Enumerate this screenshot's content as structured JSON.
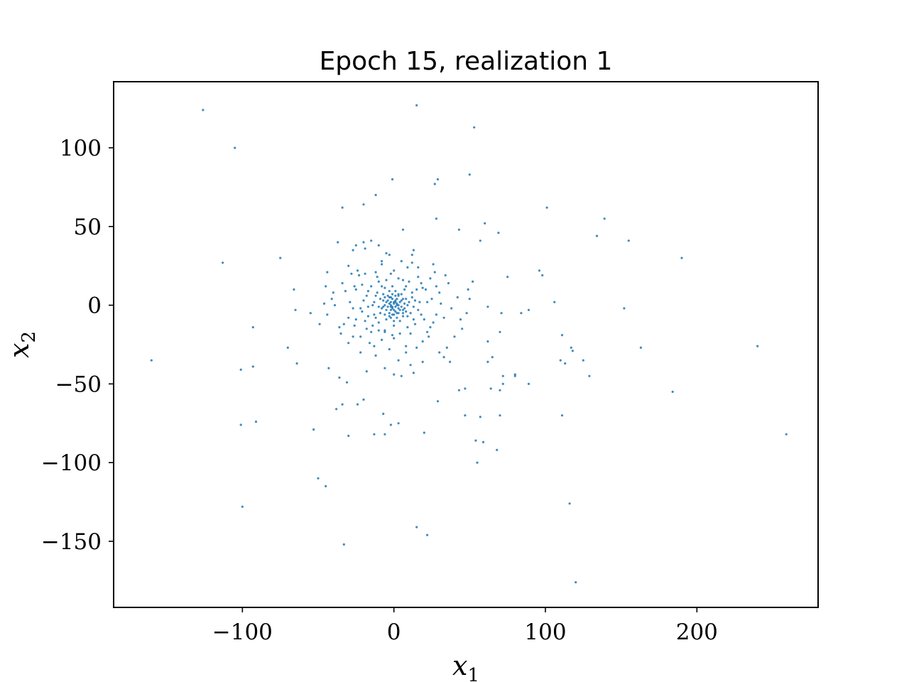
{
  "chart_data": {
    "type": "scatter",
    "title": "Epoch 15, realization 1",
    "xlabel": "x",
    "xlabel_sub": "1",
    "ylabel": "x",
    "ylabel_sub": "2",
    "xlim": [
      -185,
      280
    ],
    "ylim": [
      -192,
      142
    ],
    "xticks": [
      -100,
      0,
      100,
      200
    ],
    "xtick_labels": [
      "−100",
      "0",
      "100",
      "200"
    ],
    "yticks": [
      -150,
      -100,
      -50,
      0,
      50,
      100
    ],
    "ytick_labels": [
      "−150",
      "−100",
      "−50",
      "0",
      "50",
      "100"
    ],
    "grid": false,
    "marker_color": "#1f77b4",
    "points": [
      [
        -126,
        124
      ],
      [
        -105,
        100
      ],
      [
        15,
        127
      ],
      [
        53,
        113
      ],
      [
        -1,
        80
      ],
      [
        29,
        80
      ],
      [
        27,
        77
      ],
      [
        50,
        83
      ],
      [
        -20,
        64
      ],
      [
        -34,
        62
      ],
      [
        -12,
        70
      ],
      [
        101,
        62
      ],
      [
        139,
        55
      ],
      [
        155,
        41
      ],
      [
        134,
        44
      ],
      [
        190,
        30
      ],
      [
        -113,
        27
      ],
      [
        -75,
        30
      ],
      [
        28,
        55
      ],
      [
        43,
        48
      ],
      [
        60,
        52
      ],
      [
        69,
        46
      ],
      [
        57,
        41
      ],
      [
        6,
        48
      ],
      [
        -160,
        -35
      ],
      [
        -101,
        -41
      ],
      [
        -93,
        -39
      ],
      [
        -64,
        -37
      ],
      [
        -70,
        -27
      ],
      [
        -93,
        -14
      ],
      [
        -66,
        10
      ],
      [
        -65,
        -3
      ],
      [
        -44,
        21
      ],
      [
        -45,
        12
      ],
      [
        -43,
        -40
      ],
      [
        -34,
        -63
      ],
      [
        -38,
        -66
      ],
      [
        -53,
        -79
      ],
      [
        -101,
        -76
      ],
      [
        -91,
        -74
      ],
      [
        -30,
        -83
      ],
      [
        -13,
        -82
      ],
      [
        -7,
        -69
      ],
      [
        -6,
        -82
      ],
      [
        -2,
        -76
      ],
      [
        3,
        -75
      ],
      [
        20,
        -81
      ],
      [
        -50,
        -110
      ],
      [
        -45,
        -115
      ],
      [
        -100,
        -128
      ],
      [
        -33,
        -152
      ],
      [
        15,
        -141
      ],
      [
        22,
        -146
      ],
      [
        116,
        -126
      ],
      [
        120,
        -176
      ],
      [
        259,
        -82
      ],
      [
        240,
        -26
      ],
      [
        184,
        -55
      ],
      [
        163,
        -27
      ],
      [
        152,
        -2
      ],
      [
        111,
        -19
      ],
      [
        117,
        -27
      ],
      [
        118,
        -29
      ],
      [
        110,
        -35
      ],
      [
        113,
        -37
      ],
      [
        125,
        -35
      ],
      [
        129,
        -45
      ],
      [
        111,
        -70
      ],
      [
        89,
        -50
      ],
      [
        80,
        -44
      ],
      [
        80,
        -45
      ],
      [
        72,
        -45
      ],
      [
        72,
        -50
      ],
      [
        70,
        -54
      ],
      [
        64,
        -53
      ],
      [
        70,
        -70
      ],
      [
        57,
        -71
      ],
      [
        54,
        -86
      ],
      [
        59,
        -87
      ],
      [
        68,
        -92
      ],
      [
        55,
        -100
      ],
      [
        47,
        -70
      ],
      [
        47,
        -53
      ],
      [
        43,
        -54
      ],
      [
        37,
        -36
      ],
      [
        29,
        -61
      ],
      [
        13,
        -43
      ],
      [
        62,
        -23
      ],
      [
        65,
        -33
      ],
      [
        62,
        -36
      ],
      [
        70,
        -17
      ],
      [
        96,
        22
      ],
      [
        98,
        19
      ],
      [
        106,
        2
      ],
      [
        89,
        -3
      ],
      [
        84,
        -5
      ],
      [
        62,
        -1
      ],
      [
        71,
        -5
      ],
      [
        75,
        18
      ],
      [
        50,
        4
      ],
      [
        49,
        10
      ],
      [
        42,
        5
      ],
      [
        34,
        19
      ],
      [
        13,
        35
      ],
      [
        26,
        26
      ],
      [
        -25,
        38
      ],
      [
        -20,
        40
      ],
      [
        -15,
        41
      ],
      [
        -10,
        38
      ],
      [
        -5,
        33
      ],
      [
        -27,
        35
      ],
      [
        -37,
        40
      ],
      [
        -28,
        20
      ],
      [
        -29,
        2
      ],
      [
        -39,
        0
      ],
      [
        -41,
        4
      ],
      [
        -22,
        -20
      ],
      [
        -18,
        -15
      ],
      [
        -25,
        -9
      ],
      [
        -17,
        -7
      ],
      [
        -19,
        20
      ],
      [
        -21,
        13
      ],
      [
        -12,
        21
      ],
      [
        -10,
        15
      ],
      [
        -8,
        28
      ],
      [
        -3,
        32
      ],
      [
        5,
        28
      ],
      [
        9,
        24
      ],
      [
        12,
        27
      ],
      [
        16,
        18
      ],
      [
        18,
        14
      ],
      [
        21,
        10
      ],
      [
        25,
        4
      ],
      [
        28,
        -6
      ],
      [
        24,
        -14
      ],
      [
        19,
        -23
      ],
      [
        15,
        -27
      ],
      [
        8,
        -30
      ],
      [
        3,
        -35
      ],
      [
        -3,
        -28
      ],
      [
        -8,
        -22
      ],
      [
        -13,
        -26
      ],
      [
        -15,
        -17
      ],
      [
        -22,
        -30
      ],
      [
        -30,
        -24
      ],
      [
        -33,
        -12
      ],
      [
        -35,
        -18
      ],
      [
        -40,
        8
      ],
      [
        -34,
        14
      ],
      [
        -30,
        25
      ],
      [
        -24,
        22
      ],
      [
        -36,
        -46
      ],
      [
        -31,
        -49
      ],
      [
        -20,
        -60
      ],
      [
        -24,
        -63
      ],
      [
        -18,
        -42
      ],
      [
        -6,
        -40
      ],
      [
        0,
        -44
      ],
      [
        5,
        -45
      ],
      [
        11,
        -38
      ],
      [
        30,
        -30
      ],
      [
        33,
        -33
      ],
      [
        35,
        -27
      ],
      [
        40,
        -20
      ],
      [
        45,
        -15
      ],
      [
        38,
        -2
      ],
      [
        44,
        -9
      ],
      [
        48,
        -5
      ],
      [
        52,
        15
      ],
      [
        -44,
        -6
      ],
      [
        -46,
        1
      ],
      [
        -49,
        -12
      ],
      [
        -55,
        -5
      ],
      [
        -8,
        12
      ],
      [
        -5,
        16
      ],
      [
        -2,
        20
      ],
      [
        3,
        17
      ],
      [
        8,
        12
      ],
      [
        12,
        8
      ],
      [
        14,
        3
      ],
      [
        16,
        -3
      ],
      [
        13,
        -9
      ],
      [
        9,
        -14
      ],
      [
        4,
        -18
      ],
      [
        -1,
        -19
      ],
      [
        -6,
        -16
      ],
      [
        -10,
        -11
      ],
      [
        -13,
        -6
      ],
      [
        -14,
        0
      ],
      [
        -12,
        6
      ],
      [
        -17,
        9
      ],
      [
        -20,
        3
      ],
      [
        -21,
        -4
      ],
      [
        20,
        -9
      ],
      [
        22,
        -17
      ],
      [
        24,
        17
      ],
      [
        28,
        12
      ],
      [
        31,
        1
      ],
      [
        -25,
        10
      ],
      [
        -27,
        -2
      ],
      [
        -26,
        -13
      ],
      [
        -3,
        5
      ],
      [
        -2,
        2
      ],
      [
        -1,
        -1
      ],
      [
        0,
        1
      ],
      [
        1,
        3
      ],
      [
        2,
        0
      ],
      [
        3,
        -2
      ],
      [
        -4,
        -1
      ],
      [
        -1,
        4
      ],
      [
        2,
        4
      ],
      [
        4,
        2
      ],
      [
        5,
        -1
      ],
      [
        1,
        -4
      ],
      [
        -2,
        -3
      ],
      [
        -5,
        2
      ],
      [
        -6,
        0
      ],
      [
        -3,
        -5
      ],
      [
        0,
        -6
      ],
      [
        3,
        -5
      ],
      [
        6,
        -3
      ],
      [
        7,
        1
      ],
      [
        6,
        4
      ],
      [
        3,
        6
      ],
      [
        -1,
        7
      ],
      [
        -4,
        6
      ],
      [
        -7,
        3
      ],
      [
        -8,
        -2
      ],
      [
        -6,
        -6
      ],
      [
        -2,
        -8
      ],
      [
        2,
        -8
      ],
      [
        6,
        -7
      ],
      [
        8,
        -4
      ],
      [
        9,
        0
      ],
      [
        8,
        4
      ],
      [
        5,
        7
      ],
      [
        1,
        9
      ],
      [
        -3,
        9
      ],
      [
        -7,
        7
      ],
      [
        -9,
        4
      ],
      [
        -10,
        -1
      ],
      [
        -9,
        -5
      ],
      [
        -5,
        -9
      ],
      [
        0,
        -10
      ],
      [
        4,
        -10
      ],
      [
        9,
        -7
      ],
      [
        10,
        2
      ],
      [
        -11,
        8
      ],
      [
        11,
        -5
      ],
      [
        -12,
        -8
      ],
      [
        7,
        10
      ],
      [
        -6,
        11
      ],
      [
        12,
        5
      ],
      [
        -1,
        12
      ],
      [
        0,
        -13
      ],
      [
        -13,
        2
      ],
      [
        13,
        -1
      ],
      [
        -2,
        0
      ],
      [
        1,
        -1
      ],
      [
        0,
        2
      ],
      [
        -1,
        -2
      ],
      [
        2,
        1
      ],
      [
        -3,
        1
      ],
      [
        1,
        2
      ],
      [
        -2,
        -1
      ],
      [
        3,
        0
      ],
      [
        0,
        -3
      ],
      [
        -4,
        3
      ],
      [
        4,
        -3
      ],
      [
        -5,
        -3
      ],
      [
        5,
        3
      ],
      [
        -2,
        5
      ],
      [
        2,
        -5
      ],
      [
        -7,
        -1
      ],
      [
        7,
        -2
      ],
      [
        -1,
        -6
      ],
      [
        1,
        6
      ],
      [
        -6,
        5
      ],
      [
        6,
        -5
      ],
      [
        -3,
        -7
      ],
      [
        3,
        7
      ],
      [
        15,
        10
      ],
      [
        -15,
        12
      ],
      [
        14,
        -12
      ],
      [
        -14,
        -13
      ],
      [
        17,
        2
      ],
      [
        -17,
        -1
      ],
      [
        10,
        15
      ],
      [
        -10,
        -16
      ],
      [
        18,
        -6
      ],
      [
        -18,
        6
      ],
      [
        6,
        16
      ],
      [
        -6,
        -17
      ],
      [
        -11,
        18
      ],
      [
        11,
        -18
      ],
      [
        19,
        11
      ],
      [
        -19,
        -10
      ],
      [
        22,
        2
      ],
      [
        -22,
        -2
      ],
      [
        0,
        22
      ],
      [
        0,
        -21
      ],
      [
        23,
        -20
      ],
      [
        -23,
        19
      ],
      [
        16,
        24
      ],
      [
        -16,
        -24
      ],
      [
        26,
        -11
      ],
      [
        -26,
        12
      ],
      [
        8,
        -26
      ],
      [
        -8,
        26
      ],
      [
        30,
        8
      ],
      [
        -30,
        -8
      ],
      [
        27,
        21
      ],
      [
        -27,
        -20
      ],
      [
        33,
        -8
      ],
      [
        -32,
        9
      ],
      [
        12,
        32
      ],
      [
        -12,
        -32
      ],
      [
        36,
        14
      ],
      [
        -36,
        -14
      ],
      [
        19,
        -36
      ],
      [
        -19,
        36
      ]
    ]
  }
}
